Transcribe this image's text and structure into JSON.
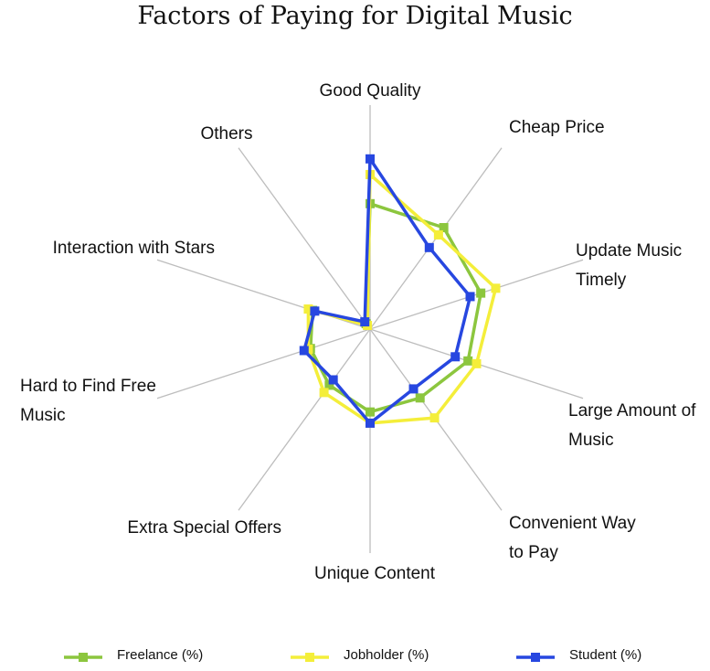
{
  "chart_data": {
    "type": "radar",
    "title": "Factors of Paying for Digital Music",
    "categories": [
      "Good Quality",
      "Cheap Price",
      "Update Music Timely",
      "Large Amount of Music",
      "Convenient Way to Pay",
      "Unique Content",
      "Extra Special Offers",
      "Hard to Find Free Music",
      "Interaction with Stars",
      "Others"
    ],
    "rlim": [
      0,
      100
    ],
    "legend": "bottom",
    "series": [
      {
        "name": "Freelance (%)",
        "color": "#8cc63e",
        "values": [
          56,
          56,
          52,
          46,
          38,
          37,
          31,
          28,
          27,
          3
        ]
      },
      {
        "name": "Jobholder (%)",
        "color": "#f4ee3a",
        "values": [
          69,
          52,
          59,
          50,
          49,
          42,
          35,
          29,
          29,
          2
        ]
      },
      {
        "name": "Student (%)",
        "color": "#2747e0",
        "values": [
          76,
          45,
          47,
          40,
          33,
          42,
          28,
          31,
          26,
          4
        ]
      }
    ]
  }
}
